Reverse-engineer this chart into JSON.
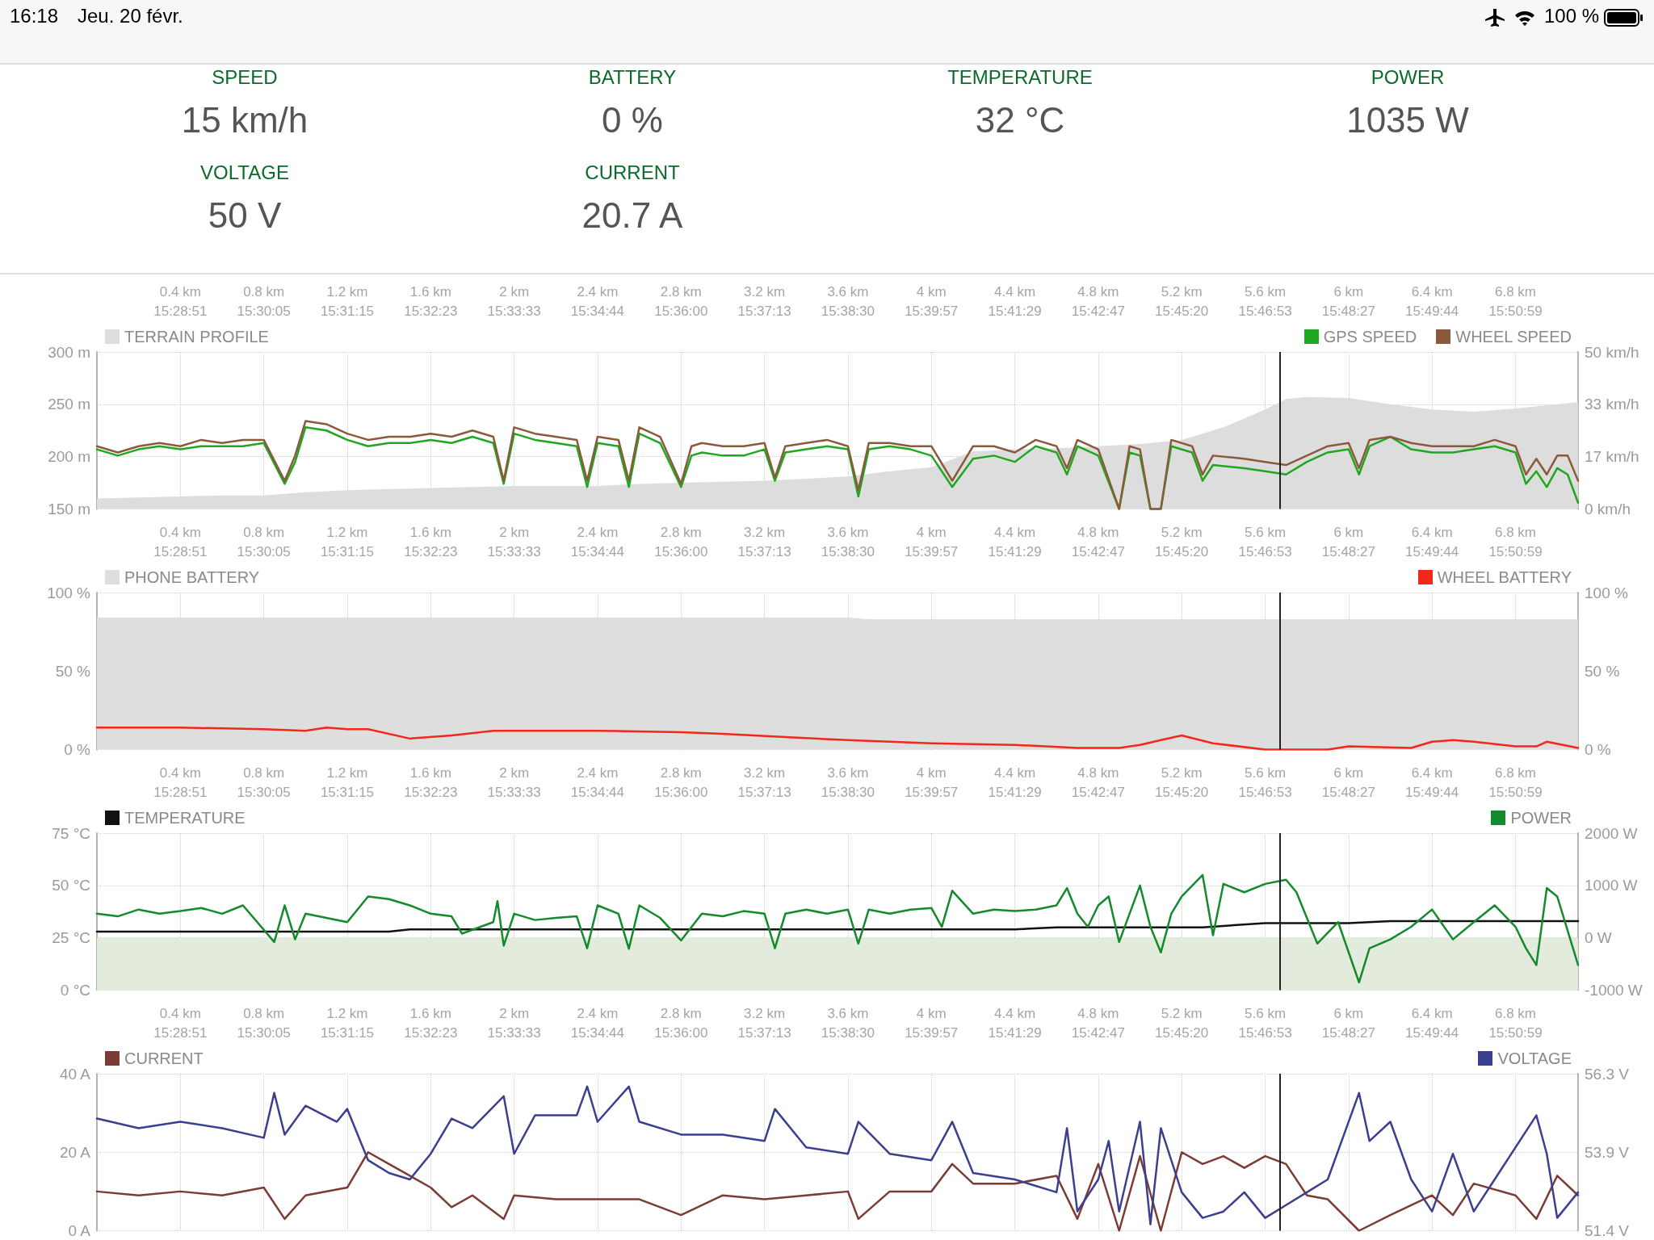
{
  "chart_data": [
    {
      "type": "other",
      "title": "16:18",
      "subtitle": "Jeu. 20 févr.",
      "annotations": [
        "100 %"
      ]
    },
    {
      "type": "other",
      "annotations": [
        "SPEED",
        "15 km/h",
        "BATTERY",
        "0 %",
        "TEMPERATURE",
        "32 °C",
        "POWER",
        "1035 W",
        "VOLTAGE",
        "50 V",
        "CURRENT",
        "20.7 A"
      ]
    },
    {
      "type": "line",
      "grid": true,
      "legend": "top",
      "marker": "none",
      "xlim": [
        0,
        7.1
      ],
      "xticks": [
        {
          "value": 0.4,
          "label": "0.4 km"
        },
        {
          "value": 0.8,
          "label": "0.8 km"
        },
        {
          "value": 1.2,
          "label": "1.2 km"
        },
        {
          "value": 1.6,
          "label": "1.6 km"
        },
        {
          "value": 2,
          "label": "2 km"
        },
        {
          "value": 2.4,
          "label": "2.4 km"
        },
        {
          "value": 2.8,
          "label": "2.8 km"
        },
        {
          "value": 3.2,
          "label": "3.2 km"
        },
        {
          "value": 3.6,
          "label": "3.6 km"
        },
        {
          "value": 4,
          "label": "4 km"
        },
        {
          "value": 4.4,
          "label": "4.4 km"
        },
        {
          "value": 4.8,
          "label": "4.8 km"
        },
        {
          "value": 5.2,
          "label": "5.2 km"
        },
        {
          "value": 5.6,
          "label": "5.6 km"
        },
        {
          "value": 6,
          "label": "6 km"
        },
        {
          "value": 6.4,
          "label": "6.4 km"
        },
        {
          "value": 6.8,
          "label": "6.8 km"
        }
      ],
      "annotations": [
        "15:28:51",
        "15:30:05",
        "15:31:15",
        "15:32:23",
        "15:33:33",
        "15:34:44",
        "15:36:00",
        "15:37:13",
        "15:38:30",
        "15:39:57",
        "15:41:29",
        "15:42:47",
        "15:45:20",
        "15:46:53",
        "15:48:27",
        "15:49:44",
        "15:50:59"
      ],
      "ylim": [
        150,
        300
      ],
      "yticks": [
        {
          "value": 150,
          "label": "150 m"
        },
        {
          "value": 200,
          "label": "200 m"
        },
        {
          "value": 250,
          "label": "250 m"
        },
        {
          "value": 300,
          "label": "300 m"
        }
      ],
      "y2lim": [
        0,
        50
      ],
      "y2ticks": [
        {
          "value": 0,
          "label": "0 km/h"
        },
        {
          "value": 16.67,
          "label": "17 km/h"
        },
        {
          "value": 33.33,
          "label": "33 km/h"
        },
        {
          "value": 50,
          "label": "50 km/h"
        }
      ],
      "ref_lines": [
        {
          "axis": "x",
          "value": 5.67,
          "color": "#222222"
        }
      ],
      "series": [
        {
          "name": "TERRAIN PROFILE",
          "type": "area",
          "color": "#dddddd",
          "x": [
            0,
            0.2,
            0.4,
            0.6,
            0.8,
            1.0,
            1.2,
            1.4,
            1.6,
            1.8,
            2.0,
            2.2,
            2.4,
            2.6,
            2.8,
            3.0,
            3.2,
            3.4,
            3.6,
            3.8,
            4.0,
            4.2,
            4.4,
            4.6,
            4.8,
            5.0,
            5.2,
            5.4,
            5.6,
            5.7,
            5.8,
            6.0,
            6.2,
            6.4,
            6.6,
            6.8,
            7.0,
            7.1
          ],
          "values": [
            160,
            161,
            162,
            163,
            163,
            166,
            168,
            169,
            170,
            171,
            172,
            172,
            172,
            174,
            175,
            176,
            177,
            179,
            181,
            186,
            190,
            205,
            207,
            208,
            210,
            212,
            216,
            228,
            245,
            255,
            257,
            256,
            250,
            245,
            243,
            246,
            250,
            252
          ]
        },
        {
          "name": "GPS SPEED",
          "axis": "y2",
          "color": "#1fa71f",
          "x": [
            0,
            0.1,
            0.2,
            0.3,
            0.4,
            0.5,
            0.6,
            0.7,
            0.8,
            0.9,
            0.95,
            1.0,
            1.1,
            1.2,
            1.3,
            1.4,
            1.5,
            1.6,
            1.7,
            1.8,
            1.9,
            1.95,
            2.0,
            2.1,
            2.2,
            2.3,
            2.35,
            2.4,
            2.5,
            2.55,
            2.6,
            2.7,
            2.8,
            2.85,
            2.9,
            3.0,
            3.1,
            3.2,
            3.25,
            3.3,
            3.4,
            3.5,
            3.6,
            3.65,
            3.7,
            3.8,
            3.9,
            4.0,
            4.1,
            4.2,
            4.3,
            4.4,
            4.5,
            4.6,
            4.65,
            4.7,
            4.8,
            4.9,
            4.95,
            5.0,
            5.05,
            5.1,
            5.15,
            5.25,
            5.3,
            5.35,
            5.5,
            5.6,
            5.7,
            5.8,
            5.9,
            6.0,
            6.05,
            6.1,
            6.2,
            6.3,
            6.4,
            6.5,
            6.6,
            6.7,
            6.8,
            6.85,
            6.9,
            6.95,
            7.0,
            7.05,
            7.1
          ],
          "values": [
            19,
            17,
            19,
            20,
            19,
            20,
            20,
            20,
            21,
            8,
            15,
            26,
            25,
            22,
            20,
            21,
            21,
            22,
            21,
            23,
            21,
            8,
            24,
            22,
            21,
            20,
            7,
            21,
            20,
            7,
            24,
            21,
            7,
            17,
            18,
            17,
            17,
            19,
            9,
            18,
            19,
            20,
            19,
            4,
            19,
            20,
            19,
            17,
            7,
            16,
            17,
            15,
            20,
            18,
            11,
            20,
            17,
            0,
            18,
            17,
            0,
            0,
            20,
            18,
            9,
            14,
            13,
            12,
            11,
            15,
            18,
            19,
            11,
            20,
            23,
            19,
            18,
            18,
            19,
            20,
            18,
            8,
            12,
            7,
            13,
            11,
            2
          ]
        },
        {
          "name": "WHEEL SPEED",
          "axis": "y2",
          "color": "#8b5a3c",
          "x": [
            0,
            0.1,
            0.2,
            0.3,
            0.4,
            0.5,
            0.6,
            0.7,
            0.8,
            0.9,
            0.95,
            1.0,
            1.1,
            1.2,
            1.3,
            1.4,
            1.5,
            1.6,
            1.7,
            1.8,
            1.9,
            1.95,
            2.0,
            2.1,
            2.2,
            2.3,
            2.35,
            2.4,
            2.5,
            2.55,
            2.6,
            2.7,
            2.8,
            2.85,
            2.9,
            3.0,
            3.1,
            3.2,
            3.25,
            3.3,
            3.4,
            3.5,
            3.6,
            3.65,
            3.7,
            3.8,
            3.9,
            4.0,
            4.1,
            4.2,
            4.3,
            4.4,
            4.5,
            4.6,
            4.65,
            4.7,
            4.8,
            4.9,
            4.95,
            5.0,
            5.05,
            5.1,
            5.15,
            5.25,
            5.3,
            5.35,
            5.5,
            5.6,
            5.7,
            5.8,
            5.9,
            6.0,
            6.05,
            6.1,
            6.2,
            6.3,
            6.4,
            6.5,
            6.6,
            6.7,
            6.8,
            6.85,
            6.9,
            6.95,
            7.0,
            7.05,
            7.1
          ],
          "values": [
            20,
            18,
            20,
            21,
            20,
            22,
            21,
            22,
            22,
            9,
            17,
            28,
            27,
            24,
            22,
            23,
            23,
            24,
            23,
            25,
            23,
            9,
            26,
            24,
            23,
            22,
            9,
            23,
            22,
            9,
            26,
            23,
            8,
            20,
            21,
            20,
            20,
            21,
            10,
            20,
            21,
            22,
            20,
            6,
            21,
            21,
            20,
            20,
            9,
            20,
            20,
            18,
            22,
            20,
            13,
            22,
            19,
            0,
            20,
            19,
            0,
            0,
            22,
            20,
            11,
            17,
            16,
            15,
            14,
            17,
            20,
            21,
            13,
            22,
            23,
            21,
            20,
            20,
            20,
            22,
            20,
            11,
            16,
            11,
            17,
            17,
            9
          ]
        }
      ]
    },
    {
      "type": "line",
      "grid": true,
      "legend": "top",
      "marker": "none",
      "xlim": [
        0,
        7.1
      ],
      "xticks": [
        {
          "value": 0.4,
          "label": "0.4 km"
        },
        {
          "value": 0.8,
          "label": "0.8 km"
        },
        {
          "value": 1.2,
          "label": "1.2 km"
        },
        {
          "value": 1.6,
          "label": "1.6 km"
        },
        {
          "value": 2,
          "label": "2 km"
        },
        {
          "value": 2.4,
          "label": "2.4 km"
        },
        {
          "value": 2.8,
          "label": "2.8 km"
        },
        {
          "value": 3.2,
          "label": "3.2 km"
        },
        {
          "value": 3.6,
          "label": "3.6 km"
        },
        {
          "value": 4,
          "label": "4 km"
        },
        {
          "value": 4.4,
          "label": "4.4 km"
        },
        {
          "value": 4.8,
          "label": "4.8 km"
        },
        {
          "value": 5.2,
          "label": "5.2 km"
        },
        {
          "value": 5.6,
          "label": "5.6 km"
        },
        {
          "value": 6,
          "label": "6 km"
        },
        {
          "value": 6.4,
          "label": "6.4 km"
        },
        {
          "value": 6.8,
          "label": "6.8 km"
        }
      ],
      "annotations": [
        "15:28:51",
        "15:30:05",
        "15:31:15",
        "15:32:23",
        "15:33:33",
        "15:34:44",
        "15:36:00",
        "15:37:13",
        "15:38:30",
        "15:39:57",
        "15:41:29",
        "15:42:47",
        "15:45:20",
        "15:46:53",
        "15:48:27",
        "15:49:44",
        "15:50:59"
      ],
      "ylim": [
        0,
        100
      ],
      "yticks": [
        {
          "value": 0,
          "label": "0 %"
        },
        {
          "value": 50,
          "label": "50 %"
        },
        {
          "value": 100,
          "label": "100 %"
        }
      ],
      "y2lim": [
        0,
        100
      ],
      "y2ticks": [
        {
          "value": 0,
          "label": "0 %"
        },
        {
          "value": 50,
          "label": "50 %"
        },
        {
          "value": 100,
          "label": "100 %"
        }
      ],
      "ref_lines": [
        {
          "axis": "x",
          "value": 5.67,
          "color": "#222222"
        }
      ],
      "series": [
        {
          "name": "PHONE BATTERY",
          "type": "area",
          "color": "#dedede",
          "x": [
            0,
            3.6,
            3.7,
            7.1
          ],
          "values": [
            84,
            84,
            83,
            83
          ]
        },
        {
          "name": "WHEEL BATTERY",
          "axis": "y2",
          "color": "#f5261a",
          "x": [
            0,
            0.4,
            0.8,
            1.0,
            1.1,
            1.2,
            1.3,
            1.5,
            1.7,
            1.9,
            2.4,
            2.8,
            3.0,
            3.3,
            3.6,
            4.0,
            4.4,
            4.7,
            4.9,
            5.0,
            5.1,
            5.2,
            5.35,
            5.6,
            5.9,
            6.0,
            6.3,
            6.4,
            6.5,
            6.6,
            6.8,
            6.9,
            6.95,
            7.1
          ],
          "values": [
            14,
            14,
            13,
            12,
            14,
            13,
            13,
            7,
            9,
            12,
            12,
            11,
            10,
            8,
            6,
            4,
            3,
            1,
            1,
            3,
            6,
            9,
            4,
            0,
            0,
            2,
            1,
            5,
            6,
            5,
            2,
            2,
            5,
            1
          ]
        }
      ]
    },
    {
      "type": "line",
      "grid": true,
      "legend": "top",
      "marker": "none",
      "xlim": [
        0,
        7.1
      ],
      "xticks": [
        {
          "value": 0.4,
          "label": "0.4 km"
        },
        {
          "value": 0.8,
          "label": "0.8 km"
        },
        {
          "value": 1.2,
          "label": "1.2 km"
        },
        {
          "value": 1.6,
          "label": "1.6 km"
        },
        {
          "value": 2,
          "label": "2 km"
        },
        {
          "value": 2.4,
          "label": "2.4 km"
        },
        {
          "value": 2.8,
          "label": "2.8 km"
        },
        {
          "value": 3.2,
          "label": "3.2 km"
        },
        {
          "value": 3.6,
          "label": "3.6 km"
        },
        {
          "value": 4,
          "label": "4 km"
        },
        {
          "value": 4.4,
          "label": "4.4 km"
        },
        {
          "value": 4.8,
          "label": "4.8 km"
        },
        {
          "value": 5.2,
          "label": "5.2 km"
        },
        {
          "value": 5.6,
          "label": "5.6 km"
        },
        {
          "value": 6,
          "label": "6 km"
        },
        {
          "value": 6.4,
          "label": "6.4 km"
        },
        {
          "value": 6.8,
          "label": "6.8 km"
        }
      ],
      "annotations": [
        "15:28:51",
        "15:30:05",
        "15:31:15",
        "15:32:23",
        "15:33:33",
        "15:34:44",
        "15:36:00",
        "15:37:13",
        "15:38:30",
        "15:39:57",
        "15:41:29",
        "15:42:47",
        "15:45:20",
        "15:46:53",
        "15:48:27",
        "15:49:44",
        "15:50:59"
      ],
      "ylim": [
        0,
        75
      ],
      "yticks": [
        {
          "value": 0,
          "label": "0 °C"
        },
        {
          "value": 25,
          "label": "25 °C"
        },
        {
          "value": 50,
          "label": "50 °C"
        },
        {
          "value": 75,
          "label": "75 °C"
        }
      ],
      "y2lim": [
        -1000,
        2000
      ],
      "y2ticks": [
        {
          "value": -1000,
          "label": "-1000 W"
        },
        {
          "value": 0,
          "label": "0 W"
        },
        {
          "value": 1000,
          "label": "1000 W"
        },
        {
          "value": 2000,
          "label": "2000 W"
        }
      ],
      "ref_lines": [
        {
          "axis": "x",
          "value": 5.67,
          "color": "#222222"
        }
      ],
      "bands": [
        {
          "axis": "y2",
          "from": -1000,
          "to": 0,
          "color": "#e3ecdc"
        }
      ],
      "series": [
        {
          "name": "TEMPERATURE",
          "color": "#111111",
          "x": [
            0,
            1.4,
            1.5,
            4.4,
            4.6,
            5.3,
            5.45,
            5.6,
            6.0,
            6.2,
            6.5,
            6.7,
            7.1
          ],
          "values": [
            28,
            28,
            29,
            29,
            30,
            30,
            31,
            32,
            32,
            33,
            33,
            33,
            33
          ]
        },
        {
          "name": "POWER",
          "axis": "y2",
          "color": "#138a2c",
          "x": [
            0,
            0.1,
            0.2,
            0.3,
            0.4,
            0.5,
            0.6,
            0.7,
            0.85,
            0.9,
            0.95,
            1.0,
            1.1,
            1.2,
            1.3,
            1.4,
            1.5,
            1.6,
            1.7,
            1.75,
            1.9,
            1.92,
            1.95,
            2.0,
            2.1,
            2.2,
            2.3,
            2.35,
            2.4,
            2.5,
            2.55,
            2.6,
            2.7,
            2.8,
            2.9,
            3.0,
            3.1,
            3.2,
            3.25,
            3.3,
            3.4,
            3.5,
            3.6,
            3.65,
            3.7,
            3.8,
            3.9,
            4.0,
            4.05,
            4.1,
            4.2,
            4.3,
            4.4,
            4.5,
            4.6,
            4.65,
            4.7,
            4.75,
            4.8,
            4.85,
            4.9,
            5.0,
            5.05,
            5.1,
            5.15,
            5.2,
            5.3,
            5.35,
            5.4,
            5.5,
            5.6,
            5.7,
            5.75,
            5.85,
            5.95,
            6.05,
            6.1,
            6.2,
            6.3,
            6.4,
            6.5,
            6.6,
            6.7,
            6.8,
            6.85,
            6.9,
            6.95,
            7.0,
            7.1
          ],
          "values": [
            460,
            410,
            540,
            460,
            510,
            570,
            460,
            620,
            -80,
            620,
            -30,
            460,
            380,
            300,
            790,
            740,
            620,
            460,
            410,
            80,
            300,
            700,
            -150,
            460,
            340,
            380,
            410,
            -200,
            620,
            460,
            -210,
            620,
            380,
            -50,
            460,
            410,
            510,
            460,
            -200,
            460,
            540,
            460,
            540,
            -110,
            540,
            460,
            540,
            570,
            210,
            900,
            460,
            540,
            510,
            540,
            620,
            950,
            460,
            210,
            620,
            790,
            -80,
            1000,
            210,
            -280,
            460,
            790,
            1200,
            50,
            1030,
            870,
            1030,
            1110,
            870,
            -110,
            300,
            -850,
            -200,
            -30,
            210,
            540,
            -30,
            300,
            620,
            210,
            -200,
            -520,
            950,
            790,
            -520
          ]
        }
      ]
    },
    {
      "type": "line",
      "grid": true,
      "legend": "top",
      "marker": "none",
      "xlim": [
        0,
        7.1
      ],
      "xticks": [
        {
          "value": 0.4,
          "label": "0.4 km"
        },
        {
          "value": 0.8,
          "label": "0.8 km"
        },
        {
          "value": 1.2,
          "label": "1.2 km"
        },
        {
          "value": 1.6,
          "label": "1.6 km"
        },
        {
          "value": 2,
          "label": "2 km"
        },
        {
          "value": 2.4,
          "label": "2.4 km"
        },
        {
          "value": 2.8,
          "label": "2.8 km"
        },
        {
          "value": 3.2,
          "label": "3.2 km"
        },
        {
          "value": 3.6,
          "label": "3.6 km"
        },
        {
          "value": 4,
          "label": "4 km"
        },
        {
          "value": 4.4,
          "label": "4.4 km"
        },
        {
          "value": 4.8,
          "label": "4.8 km"
        },
        {
          "value": 5.2,
          "label": "5.2 km"
        },
        {
          "value": 5.6,
          "label": "5.6 km"
        },
        {
          "value": 6,
          "label": "6 km"
        },
        {
          "value": 6.4,
          "label": "6.4 km"
        },
        {
          "value": 6.8,
          "label": "6.8 km"
        }
      ],
      "annotations": [
        "15:28:51",
        "15:30:05",
        "15:31:15",
        "15:32:23",
        "15:33:33",
        "15:34:44",
        "15:36:00",
        "15:37:13",
        "15:38:30",
        "15:39:57",
        "15:41:29",
        "15:42:47",
        "15:45:20",
        "15:46:53",
        "15:48:27",
        "15:49:44",
        "15:50:59"
      ],
      "ylim": [
        0,
        40
      ],
      "yticks": [
        {
          "value": 0,
          "label": "0 A"
        },
        {
          "value": 20,
          "label": "20 A"
        },
        {
          "value": 40,
          "label": "40 A"
        }
      ],
      "y2lim": [
        51.4,
        56.3
      ],
      "y2ticks": [
        {
          "value": 51.4,
          "label": "51.4 V"
        },
        {
          "value": 53.85,
          "label": "53.9 V"
        },
        {
          "value": 56.3,
          "label": "56.3 V"
        }
      ],
      "ref_lines": [
        {
          "axis": "x",
          "value": 5.67,
          "color": "#222222"
        }
      ],
      "series": [
        {
          "name": "CURRENT",
          "color": "#7d3b35",
          "x": [
            0,
            0.2,
            0.4,
            0.6,
            0.8,
            0.9,
            1.0,
            1.2,
            1.3,
            1.4,
            1.5,
            1.6,
            1.7,
            1.8,
            1.95,
            2.0,
            2.2,
            2.4,
            2.6,
            2.8,
            3.0,
            3.2,
            3.4,
            3.6,
            3.65,
            3.8,
            4.0,
            4.1,
            4.2,
            4.4,
            4.6,
            4.7,
            4.8,
            4.9,
            5.0,
            5.1,
            5.2,
            5.3,
            5.4,
            5.5,
            5.6,
            5.7,
            5.8,
            5.9,
            6.05,
            6.2,
            6.4,
            6.5,
            6.6,
            6.8,
            6.9,
            7.0,
            7.1
          ],
          "values": [
            10,
            9,
            10,
            9,
            11,
            3,
            9,
            11,
            20,
            17,
            14,
            11,
            6,
            9,
            3,
            9,
            8,
            8,
            8,
            4,
            9,
            8,
            9,
            10,
            3,
            10,
            10,
            17,
            12,
            12,
            14,
            3,
            17,
            0,
            19,
            0,
            20,
            17,
            19,
            16,
            19,
            17,
            9,
            8,
            0,
            4,
            9,
            4,
            12,
            9,
            3,
            14,
            9
          ]
        },
        {
          "name": "VOLTAGE",
          "axis": "y2",
          "color": "#3b3f8e",
          "x": [
            0,
            0.2,
            0.4,
            0.6,
            0.8,
            0.85,
            0.9,
            1.0,
            1.15,
            1.2,
            1.3,
            1.4,
            1.5,
            1.6,
            1.7,
            1.8,
            1.95,
            2.0,
            2.1,
            2.3,
            2.35,
            2.4,
            2.55,
            2.6,
            2.8,
            3.0,
            3.2,
            3.25,
            3.4,
            3.6,
            3.65,
            3.8,
            4.0,
            4.1,
            4.2,
            4.4,
            4.6,
            4.65,
            4.7,
            4.8,
            4.85,
            4.9,
            5.0,
            5.05,
            5.1,
            5.2,
            5.3,
            5.4,
            5.5,
            5.6,
            5.7,
            5.8,
            5.9,
            6.05,
            6.1,
            6.2,
            6.3,
            6.4,
            6.5,
            6.6,
            6.7,
            6.9,
            6.95,
            7.0,
            7.1
          ],
          "values": [
            54.9,
            54.6,
            54.8,
            54.6,
            54.3,
            55.7,
            54.4,
            55.3,
            54.8,
            55.2,
            53.6,
            53.2,
            53.0,
            53.8,
            54.9,
            54.6,
            55.6,
            53.8,
            55.0,
            55.0,
            55.9,
            54.8,
            55.9,
            54.8,
            54.4,
            54.4,
            54.2,
            55.2,
            54.0,
            53.8,
            54.8,
            53.8,
            53.6,
            54.8,
            53.2,
            53.0,
            52.6,
            54.6,
            52.0,
            53.0,
            54.2,
            52.0,
            54.8,
            51.6,
            54.6,
            52.6,
            51.8,
            52.0,
            52.6,
            51.8,
            52.2,
            52.6,
            53.0,
            55.7,
            54.2,
            54.8,
            53.0,
            52.0,
            53.8,
            52.0,
            53.0,
            55.0,
            53.8,
            51.8,
            52.6
          ]
        }
      ]
    }
  ]
}
